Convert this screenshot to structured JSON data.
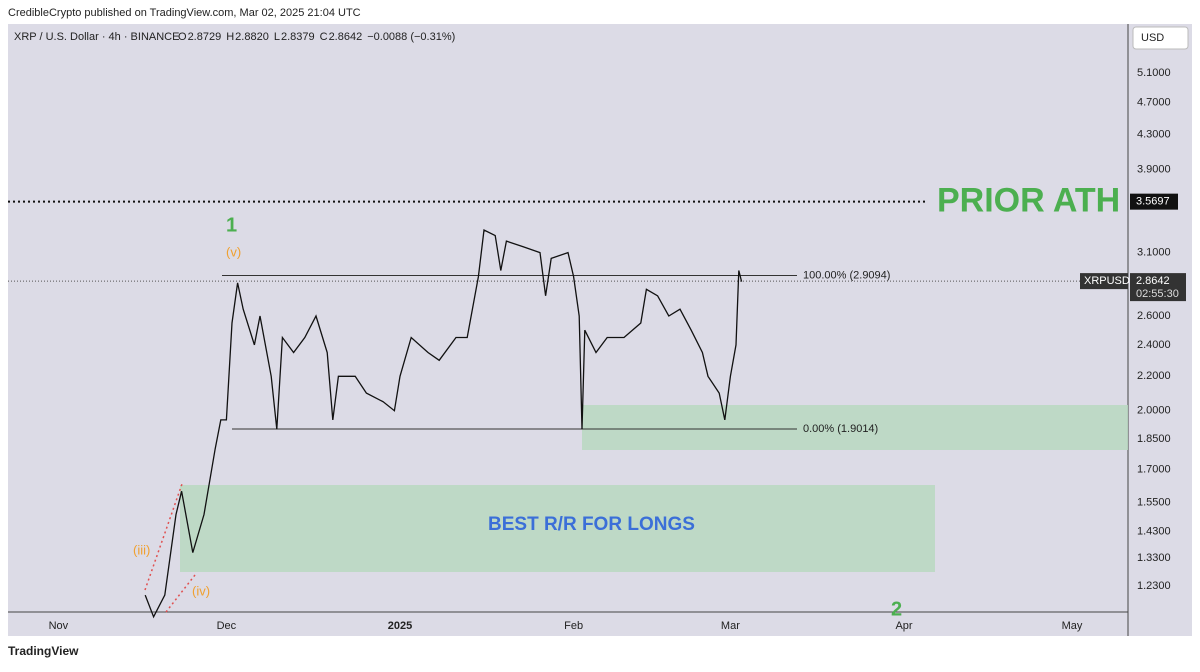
{
  "header": {
    "byline": "CredibleCrypto published on TradingView.com, Mar 02, 2025 21:04 UTC",
    "footer": "TradingView"
  },
  "chart_data": {
    "type": "line",
    "symbol": "XRP / U.S. Dollar · 4h · BINANCE",
    "ohlc": [
      {
        "key": "O",
        "value": "2.8729"
      },
      {
        "key": "H",
        "value": "2.8820"
      },
      {
        "key": "L",
        "value": "2.8379"
      },
      {
        "key": "C",
        "value": "2.8642"
      }
    ],
    "change": "−0.0088 (−0.31%)",
    "currency": "USD",
    "log_scale": true,
    "color": "#111111",
    "x": [
      24.5,
      26,
      28,
      30,
      31,
      33,
      35,
      37,
      38,
      39,
      40,
      41,
      42,
      44,
      45,
      47,
      48,
      49,
      51,
      53,
      55,
      57,
      58,
      59,
      62,
      64,
      67,
      69,
      70,
      72,
      75,
      77,
      80,
      82,
      84,
      85,
      87,
      88,
      89,
      92,
      95,
      96,
      97,
      100,
      101,
      102,
      102.5,
      103,
      105,
      107,
      110,
      113,
      114,
      116,
      118,
      120,
      122,
      124,
      125,
      127,
      128,
      129,
      130,
      130.5,
      131
    ],
    "series": [
      {
        "name": "XRPUSD",
        "values": [
          1.2,
          1.13,
          1.2,
          1.5,
          1.6,
          1.35,
          1.5,
          1.8,
          1.95,
          1.95,
          2.55,
          2.85,
          2.65,
          2.4,
          2.6,
          2.2,
          1.9,
          2.45,
          2.35,
          2.45,
          2.6,
          2.35,
          1.95,
          2.2,
          2.2,
          2.1,
          2.05,
          2.0,
          2.2,
          2.45,
          2.35,
          2.3,
          2.45,
          2.45,
          2.9,
          3.3,
          3.25,
          2.95,
          3.2,
          3.15,
          3.1,
          2.75,
          3.05,
          3.1,
          2.9,
          2.6,
          1.9,
          2.5,
          2.35,
          2.45,
          2.45,
          2.55,
          2.8,
          2.75,
          2.6,
          2.65,
          2.5,
          2.35,
          2.2,
          2.1,
          1.95,
          2.2,
          2.4,
          2.95,
          2.86
        ]
      }
    ],
    "xlim": [
      0,
      200
    ],
    "xticks": [
      {
        "value": 9,
        "label": "Nov"
      },
      {
        "value": 39,
        "label": "Dec"
      },
      {
        "value": 70,
        "label": "2025"
      },
      {
        "value": 101,
        "label": "Feb"
      },
      {
        "value": 129,
        "label": "Mar"
      },
      {
        "value": 160,
        "label": "Apr"
      },
      {
        "value": 190,
        "label": "May"
      }
    ],
    "ylim": [
      1.145,
      5.84
    ],
    "yticks": [
      {
        "value": 1.23,
        "label": "1.2300"
      },
      {
        "value": 1.33,
        "label": "1.3300"
      },
      {
        "value": 1.43,
        "label": "1.4300"
      },
      {
        "value": 1.55,
        "label": "1.5500"
      },
      {
        "value": 1.7,
        "label": "1.7000"
      },
      {
        "value": 1.85,
        "label": "1.8500"
      },
      {
        "value": 2.0,
        "label": "2.0000"
      },
      {
        "value": 2.2,
        "label": "2.2000"
      },
      {
        "value": 2.4,
        "label": "2.4000"
      },
      {
        "value": 2.6,
        "label": "2.6000"
      },
      {
        "value": 3.1,
        "label": "3.1000"
      },
      {
        "value": 3.9,
        "label": "3.9000"
      },
      {
        "value": 4.3,
        "label": "4.3000"
      },
      {
        "value": 4.7,
        "label": "4.7000"
      },
      {
        "value": 5.1,
        "label": "5.1000"
      }
    ],
    "fib_levels": [
      {
        "value": 2.9094,
        "label": "100.00% (2.9094)"
      },
      {
        "value": 1.9014,
        "label": "0.00% (1.9014)"
      }
    ],
    "prior_ath": {
      "value": 3.5697,
      "label": "3.5697",
      "text": "PRIOR ATH"
    },
    "last_price": {
      "value": 2.8642,
      "label": "2.8642",
      "countdown": "02:55:30",
      "name": "XRPUSD"
    },
    "annotations": {
      "zone": "BEST R/R FOR LONGS",
      "wave1": "1",
      "wave_v": "(v)",
      "wave_iii": "(iii)",
      "wave_iv": "(iv)",
      "wave2": "2"
    }
  }
}
